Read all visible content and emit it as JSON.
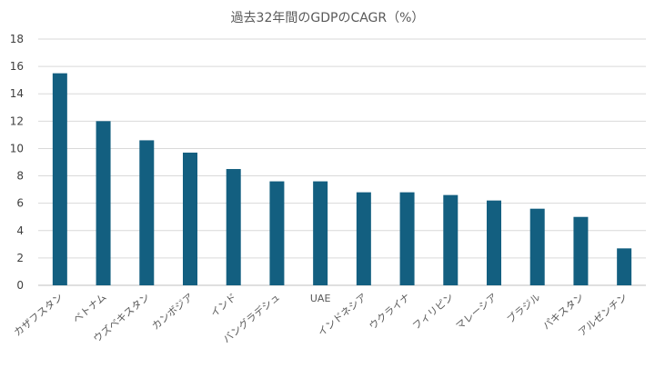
{
  "chart_data": {
    "type": "bar",
    "title": "過去32年間のGDPのCAGR（%）",
    "xlabel": "",
    "ylabel": "",
    "ylim": [
      0,
      18
    ],
    "yticks": [
      0,
      2,
      4,
      6,
      8,
      10,
      12,
      14,
      16,
      18
    ],
    "grid": true,
    "categories": [
      "カザフスタン",
      "ベトナム",
      "ウズベキスタン",
      "カンボジア",
      "インド",
      "バングラデシュ",
      "UAE",
      "インドネシア",
      "ウクライナ",
      "フィリピン",
      "マレーシア",
      "ブラジル",
      "パキスタン",
      "アルゼンチン"
    ],
    "values": [
      15.5,
      12.0,
      10.6,
      9.7,
      8.5,
      7.6,
      7.6,
      6.8,
      6.8,
      6.6,
      6.2,
      5.6,
      5.0,
      2.7
    ],
    "colors": {
      "bar": "#135f80",
      "grid": "#d9d9d9",
      "axis": "#bfbfbf"
    }
  }
}
